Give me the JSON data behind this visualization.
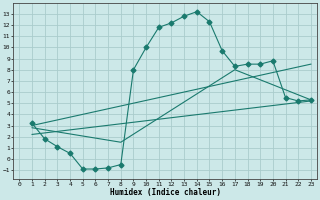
{
  "title": "",
  "xlabel": "Humidex (Indice chaleur)",
  "ylabel": "",
  "bg_color": "#cce8e8",
  "grid_color": "#aacccc",
  "line_color": "#1a7a6e",
  "xlim": [
    -0.5,
    23.5
  ],
  "ylim": [
    -1.8,
    14.0
  ],
  "xticks": [
    0,
    1,
    2,
    3,
    4,
    5,
    6,
    7,
    8,
    9,
    10,
    11,
    12,
    13,
    14,
    15,
    16,
    17,
    18,
    19,
    20,
    21,
    22,
    23
  ],
  "yticks": [
    -1,
    0,
    1,
    2,
    3,
    4,
    5,
    6,
    7,
    8,
    9,
    10,
    11,
    12,
    13
  ],
  "curve1_x": [
    1,
    2,
    3,
    4,
    5,
    6,
    7,
    8,
    9,
    10,
    11,
    12,
    13,
    14,
    15,
    16,
    17,
    18,
    19,
    20,
    21,
    22,
    23
  ],
  "curve1_y": [
    3.2,
    1.8,
    1.1,
    0.5,
    -0.9,
    -0.9,
    -0.8,
    -0.5,
    8.0,
    10.0,
    11.8,
    12.2,
    12.8,
    13.2,
    12.3,
    9.7,
    8.3,
    8.5,
    8.5,
    8.8,
    5.5,
    5.2,
    5.3
  ],
  "curve2_x": [
    1,
    23
  ],
  "curve2_y": [
    3.0,
    8.5
  ],
  "curve3_x": [
    1,
    23
  ],
  "curve3_y": [
    2.2,
    5.2
  ],
  "curve4_x": [
    1,
    8,
    17,
    23
  ],
  "curve4_y": [
    2.8,
    1.5,
    8.0,
    5.3
  ],
  "xlabel_fontsize": 5.5,
  "tick_fontsize": 4.5
}
